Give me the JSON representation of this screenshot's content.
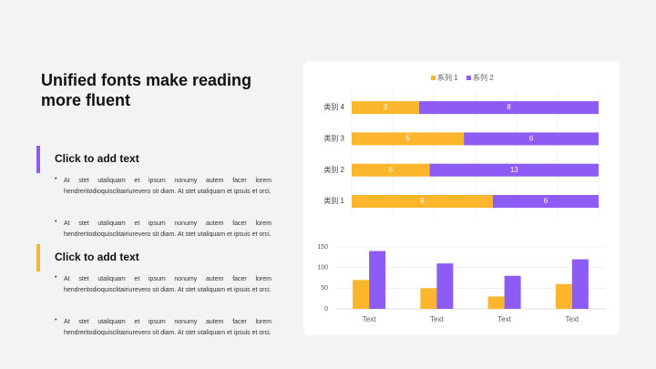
{
  "title": "Unified fonts make reading more fluent",
  "sections": [
    {
      "heading": "Click to add text",
      "bullets": [
        "At stet utaliquam  et ipsum nonumy  autem facer lorem hendreritodioquisclitairiurevero  sit diam.  At stet utaliquam  et ipsuis  et orci.",
        "At stet utaliquam  et ipsum nonumy  autem facer lorem hendreritodioquisclitairiurevero  sit diam.  At stet utaliquam  et ipsuis  et orci."
      ]
    },
    {
      "heading": "Click to add text",
      "bullets": [
        "At stet utaliquam  et ipsum nonumy  autem facer lorem hendreritodioquisclitairiurevero  sit diam.  At stet utaliquam  et ipsuis  et orci.",
        "At stet utaliquam  et ipsum nonumy  autem facer lorem hendreritodioquisclitairiurevero  sit diam.  At stet utaliquam  et ipsuis  et orci."
      ]
    }
  ],
  "chart_data": [
    {
      "type": "bar",
      "orientation": "horizontal",
      "stacking": "percent",
      "legend": "top",
      "categories": [
        "类别 1",
        "类别 2",
        "类别 3",
        "类别 4"
      ],
      "series": [
        {
          "name": "系列 1",
          "color": "#fbb62b",
          "values": [
            8,
            6,
            5,
            3
          ]
        },
        {
          "name": "系列 2",
          "color": "#8c5cf5",
          "values": [
            6,
            13,
            6,
            8
          ]
        }
      ]
    },
    {
      "type": "bar",
      "categories": [
        "Text",
        "Text",
        "Text",
        "Text"
      ],
      "series": [
        {
          "color": "#fbb62b",
          "values": [
            70,
            50,
            30,
            60
          ]
        },
        {
          "color": "#8c5cf5",
          "values": [
            140,
            110,
            80,
            120
          ]
        }
      ],
      "ylim": [
        0,
        150
      ],
      "yticks": [
        0,
        50,
        100,
        150
      ],
      "grid": true
    }
  ]
}
